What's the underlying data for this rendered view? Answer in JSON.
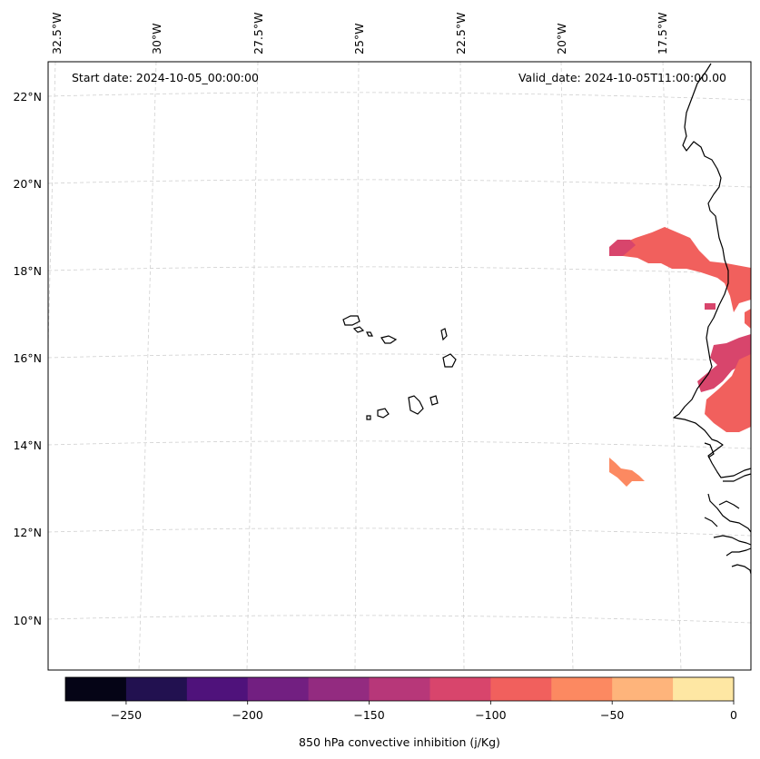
{
  "annotations": {
    "start_date": "Start date: 2024-10-05_00:00:00",
    "valid_date": "Valid_date: 2024-10-05T11:00:00.00"
  },
  "top_labels": [
    "32.5°W",
    "30°W",
    "27.5°W",
    "25°W",
    "22.5°W",
    "20°W",
    "17.5°W"
  ],
  "left_labels": [
    "22°N",
    "20°N",
    "18°N",
    "16°N",
    "14°N",
    "12°N",
    "10°N"
  ],
  "colorbar": {
    "label": "850 hPa convective inhibition (j/Kg)",
    "ticks": [
      "−250",
      "−200",
      "−150",
      "−100",
      "−50",
      "0"
    ],
    "min": -275,
    "max": 0,
    "levels": [
      -275,
      -250,
      -225,
      -200,
      -175,
      -150,
      -125,
      -100,
      -75,
      -50,
      -25,
      0
    ],
    "colors": [
      "#050416",
      "#221150",
      "#4f127b",
      "#721f81",
      "#932b80",
      "#b73779",
      "#d8456c",
      "#f1605d",
      "#fc8961",
      "#feb47b",
      "#fee7a3"
    ]
  },
  "fields": {
    "legend_colors": {
      "strong": "#d8456c",
      "moderate": "#f1605d",
      "weak": "#fc8961"
    }
  }
}
